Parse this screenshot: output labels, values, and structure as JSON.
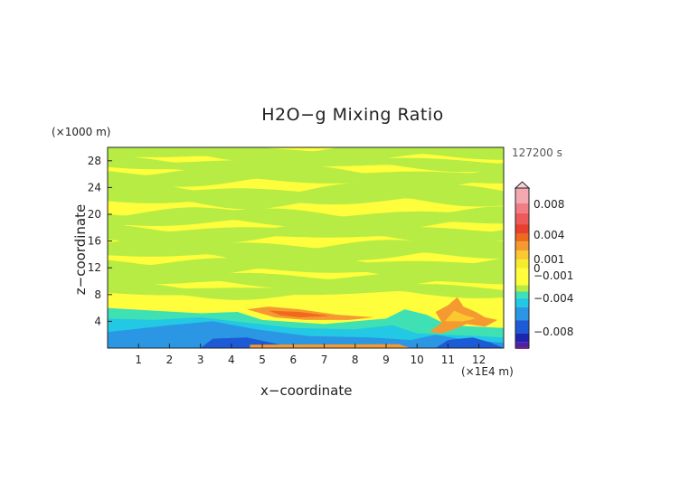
{
  "chart_data": {
    "type": "heatmap",
    "title": "H2O−g Mixing Ratio",
    "xlabel": "x−coordinate",
    "ylabel": "z−coordinate",
    "x_unit": "(×1E4 m)",
    "y_unit": "(×1000 m)",
    "time_label": "127200 s",
    "xlim": [
      0,
      12.8
    ],
    "ylim": [
      0,
      30
    ],
    "x_ticks": [
      "1",
      "2",
      "3",
      "4",
      "5",
      "6",
      "7",
      "8",
      "9",
      "10",
      "11",
      "12"
    ],
    "y_ticks": [
      "4",
      "8",
      "12",
      "16",
      "20",
      "24",
      "28"
    ],
    "colorbar": {
      "labels": [
        "0.008",
        "0.004",
        "0.001",
        "0",
        "−0.001",
        "−0.004",
        "−0.008"
      ],
      "levels": [
        {
          "v": 0.01,
          "c": "#f4a8b0"
        },
        {
          "v": 0.008,
          "c": "#f07c86"
        },
        {
          "v": 0.006,
          "c": "#ec5a5a"
        },
        {
          "v": 0.004,
          "c": "#e8402c"
        },
        {
          "v": 0.003,
          "c": "#f06a1c"
        },
        {
          "v": 0.002,
          "c": "#f59a30"
        },
        {
          "v": 0.001,
          "c": "#fbc830"
        },
        {
          "v": 0.0005,
          "c": "#f6ec2c"
        },
        {
          "v": 0,
          "c": "#fefe3c"
        },
        {
          "v": -0.0002,
          "c": "#b6ec44"
        },
        {
          "v": -0.0005,
          "c": "#3ee0b4"
        },
        {
          "v": -0.001,
          "c": "#22c8e4"
        },
        {
          "v": -0.002,
          "c": "#2a96e4"
        },
        {
          "v": -0.004,
          "c": "#1c5ad6"
        },
        {
          "v": -0.006,
          "c": "#2022b0"
        },
        {
          "v": -0.007,
          "c": "#5020a8"
        },
        {
          "v": -0.008,
          "c": "#9a2ab8"
        },
        {
          "v": -0.01,
          "c": "#f03cc8"
        }
      ]
    },
    "field_description": "Horizontal bands alternating yellow (~0) and green (~−0.0002) above z≈6; cyan/blue negative band near surface; orange/red positive tongue around x 4.5–8.5, z 4–6; orange cells near x 10.5–12, z 2–8."
  }
}
